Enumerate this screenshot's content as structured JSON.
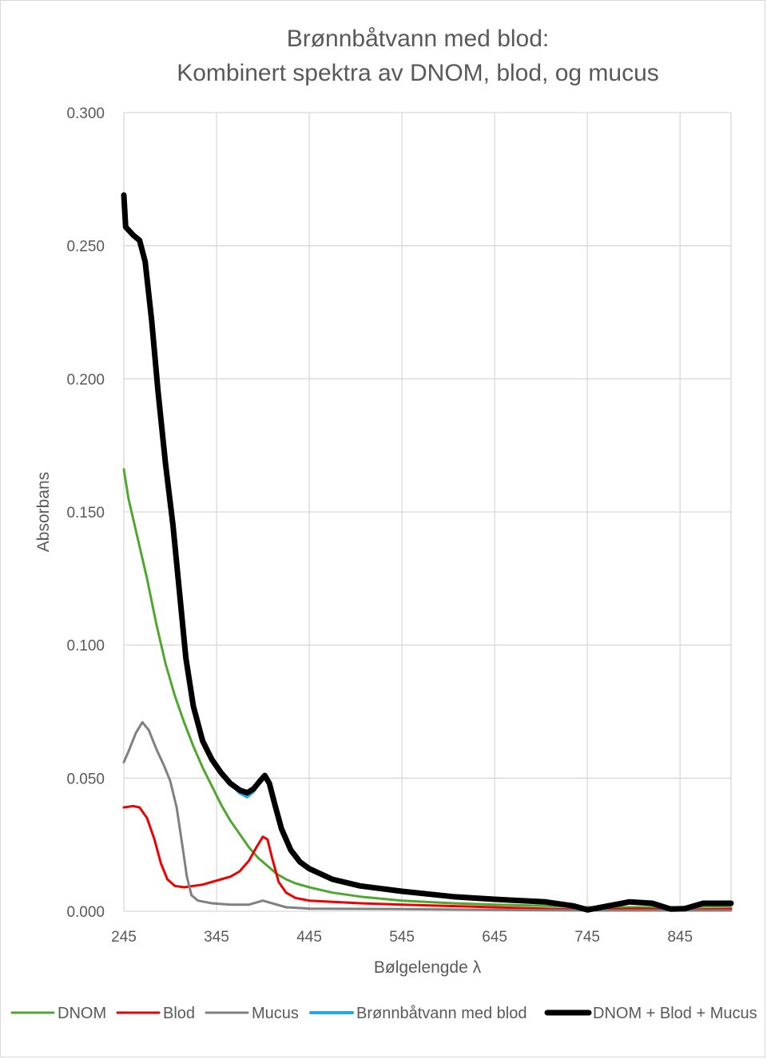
{
  "chart_data": {
    "type": "line",
    "title": "Brønnbåtvann med blod:",
    "subtitle": "Kombinert spektra av DNOM, blod, og mucus",
    "xlabel": "Bølgelengde  λ",
    "ylabel": "Absorbans",
    "xlim": [
      245,
      900
    ],
    "ylim": [
      0,
      0.3
    ],
    "xticks": [
      "245",
      "345",
      "445",
      "545",
      "645",
      "745",
      "845"
    ],
    "yticks": [
      "0.000",
      "0.050",
      "0.100",
      "0.150",
      "0.200",
      "0.250",
      "0.300"
    ],
    "grid": true,
    "legend_position": "bottom",
    "series": [
      {
        "name": "DNOM",
        "color": "#4ea72e",
        "width": 3,
        "points": [
          [
            245,
            0.166
          ],
          [
            250,
            0.155
          ],
          [
            260,
            0.14
          ],
          [
            270,
            0.125
          ],
          [
            280,
            0.108
          ],
          [
            290,
            0.093
          ],
          [
            300,
            0.081
          ],
          [
            310,
            0.071
          ],
          [
            320,
            0.062
          ],
          [
            330,
            0.054
          ],
          [
            340,
            0.047
          ],
          [
            350,
            0.04
          ],
          [
            360,
            0.034
          ],
          [
            370,
            0.029
          ],
          [
            380,
            0.024
          ],
          [
            390,
            0.02
          ],
          [
            400,
            0.017
          ],
          [
            410,
            0.014
          ],
          [
            420,
            0.012
          ],
          [
            430,
            0.0105
          ],
          [
            445,
            0.009
          ],
          [
            470,
            0.007
          ],
          [
            500,
            0.0055
          ],
          [
            545,
            0.004
          ],
          [
            600,
            0.003
          ],
          [
            645,
            0.0025
          ],
          [
            700,
            0.002
          ],
          [
            745,
            0.0015
          ],
          [
            800,
            0.0015
          ],
          [
            845,
            0.0015
          ],
          [
            900,
            0.002
          ]
        ]
      },
      {
        "name": "Blod",
        "color": "#ee0000",
        "width": 3,
        "points": [
          [
            245,
            0.039
          ],
          [
            255,
            0.0395
          ],
          [
            262,
            0.039
          ],
          [
            270,
            0.035
          ],
          [
            278,
            0.027
          ],
          [
            285,
            0.018
          ],
          [
            292,
            0.012
          ],
          [
            300,
            0.0095
          ],
          [
            310,
            0.009
          ],
          [
            320,
            0.0095
          ],
          [
            330,
            0.01
          ],
          [
            340,
            0.011
          ],
          [
            350,
            0.012
          ],
          [
            360,
            0.013
          ],
          [
            370,
            0.015
          ],
          [
            380,
            0.019
          ],
          [
            388,
            0.024
          ],
          [
            395,
            0.028
          ],
          [
            400,
            0.027
          ],
          [
            405,
            0.02
          ],
          [
            412,
            0.011
          ],
          [
            420,
            0.007
          ],
          [
            430,
            0.005
          ],
          [
            445,
            0.004
          ],
          [
            500,
            0.003
          ],
          [
            545,
            0.0025
          ],
          [
            645,
            0.0015
          ],
          [
            745,
            0.0005
          ],
          [
            800,
            0.001
          ],
          [
            845,
            0.0005
          ],
          [
            900,
            0.001
          ]
        ]
      },
      {
        "name": "Mucus",
        "color": "#808080",
        "width": 3,
        "points": [
          [
            245,
            0.056
          ],
          [
            250,
            0.06
          ],
          [
            258,
            0.067
          ],
          [
            265,
            0.071
          ],
          [
            272,
            0.068
          ],
          [
            280,
            0.061
          ],
          [
            288,
            0.055
          ],
          [
            295,
            0.049
          ],
          [
            302,
            0.039
          ],
          [
            308,
            0.025
          ],
          [
            313,
            0.013
          ],
          [
            318,
            0.006
          ],
          [
            325,
            0.004
          ],
          [
            340,
            0.003
          ],
          [
            360,
            0.0025
          ],
          [
            380,
            0.0025
          ],
          [
            395,
            0.004
          ],
          [
            405,
            0.003
          ],
          [
            420,
            0.0015
          ],
          [
            445,
            0.001
          ],
          [
            545,
            0.0008
          ],
          [
            645,
            0.0005
          ],
          [
            745,
            0.0003
          ],
          [
            845,
            0.0003
          ],
          [
            900,
            0.0003
          ]
        ]
      },
      {
        "name": "Brønnbåtvann med blod",
        "color": "#22a8e4",
        "width": 4,
        "points": [
          [
            245,
            0.269
          ],
          [
            247,
            0.257
          ],
          [
            255,
            0.254
          ],
          [
            262,
            0.252
          ],
          [
            268,
            0.244
          ],
          [
            275,
            0.222
          ],
          [
            282,
            0.195
          ],
          [
            290,
            0.168
          ],
          [
            298,
            0.145
          ],
          [
            305,
            0.12
          ],
          [
            312,
            0.095
          ],
          [
            320,
            0.078
          ],
          [
            330,
            0.064
          ],
          [
            340,
            0.057
          ],
          [
            350,
            0.052
          ],
          [
            360,
            0.048
          ],
          [
            370,
            0.0445
          ],
          [
            378,
            0.043
          ],
          [
            385,
            0.045
          ],
          [
            392,
            0.049
          ],
          [
            397,
            0.051
          ],
          [
            402,
            0.048
          ],
          [
            408,
            0.04
          ],
          [
            415,
            0.031
          ],
          [
            425,
            0.023
          ],
          [
            435,
            0.0185
          ],
          [
            445,
            0.016
          ],
          [
            470,
            0.012
          ],
          [
            500,
            0.0095
          ],
          [
            545,
            0.0075
          ],
          [
            600,
            0.0055
          ],
          [
            645,
            0.0045
          ],
          [
            700,
            0.0035
          ],
          [
            730,
            0.002
          ],
          [
            745,
            0.0005
          ],
          [
            760,
            0.0015
          ],
          [
            790,
            0.0035
          ],
          [
            815,
            0.003
          ],
          [
            835,
            0.0008
          ],
          [
            850,
            0.001
          ],
          [
            870,
            0.003
          ],
          [
            900,
            0.003
          ]
        ]
      },
      {
        "name": "DNOM + Blod + Mucus",
        "color": "#000000",
        "width": 7,
        "points": [
          [
            245,
            0.269
          ],
          [
            247,
            0.257
          ],
          [
            255,
            0.254
          ],
          [
            262,
            0.252
          ],
          [
            268,
            0.244
          ],
          [
            275,
            0.222
          ],
          [
            282,
            0.195
          ],
          [
            290,
            0.168
          ],
          [
            298,
            0.145
          ],
          [
            305,
            0.12
          ],
          [
            312,
            0.095
          ],
          [
            320,
            0.077
          ],
          [
            330,
            0.064
          ],
          [
            340,
            0.057
          ],
          [
            350,
            0.052
          ],
          [
            360,
            0.048
          ],
          [
            370,
            0.0455
          ],
          [
            378,
            0.0445
          ],
          [
            385,
            0.046
          ],
          [
            392,
            0.049
          ],
          [
            397,
            0.051
          ],
          [
            402,
            0.048
          ],
          [
            408,
            0.04
          ],
          [
            415,
            0.031
          ],
          [
            425,
            0.023
          ],
          [
            435,
            0.0185
          ],
          [
            445,
            0.016
          ],
          [
            470,
            0.012
          ],
          [
            500,
            0.0095
          ],
          [
            545,
            0.0075
          ],
          [
            600,
            0.0055
          ],
          [
            645,
            0.0045
          ],
          [
            700,
            0.0035
          ],
          [
            730,
            0.002
          ],
          [
            745,
            0.0005
          ],
          [
            760,
            0.0015
          ],
          [
            790,
            0.0035
          ],
          [
            815,
            0.003
          ],
          [
            835,
            0.0008
          ],
          [
            850,
            0.001
          ],
          [
            870,
            0.003
          ],
          [
            900,
            0.003
          ]
        ]
      }
    ]
  }
}
